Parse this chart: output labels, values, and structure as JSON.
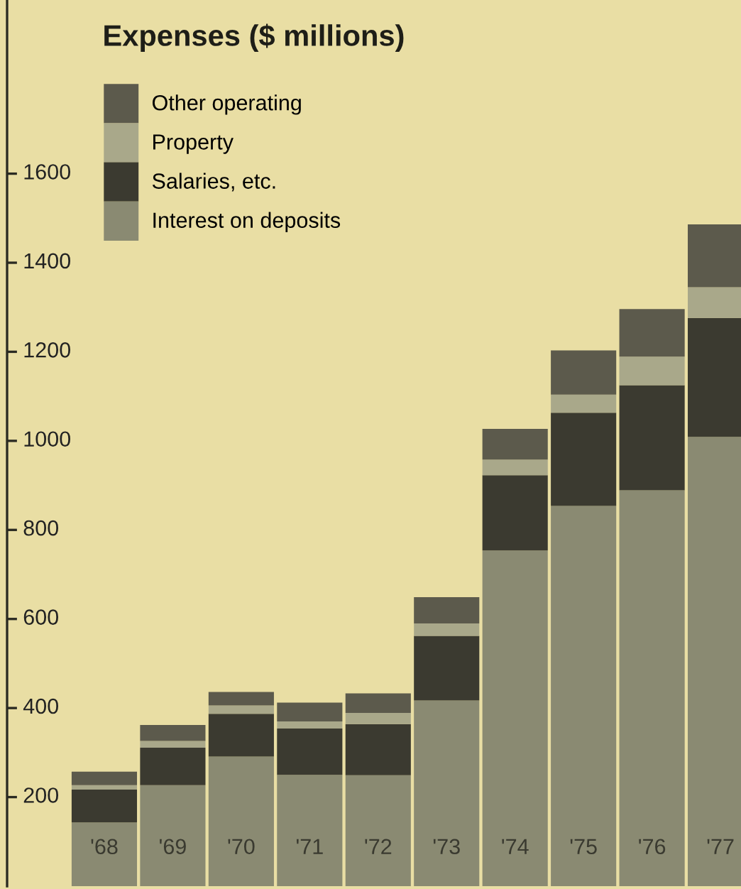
{
  "chart_data": {
    "type": "bar",
    "title": "Expenses ($ millions)",
    "stacked": true,
    "legend": "top left",
    "grid": false,
    "tick_labels": "y",
    "categories": [
      "'68",
      "'69",
      "'70",
      "'71",
      "'72",
      "'73",
      "'74",
      "'75",
      "'76",
      "'77"
    ],
    "series": [
      {
        "name": "Interest on deposits",
        "color": "#8a8a72",
        "values": [
          143,
          227,
          291,
          250,
          249,
          417,
          754,
          854,
          889,
          1009
        ]
      },
      {
        "name": "Salaries, etc.",
        "color": "#3b3a30",
        "values": [
          74,
          84,
          96,
          104,
          115,
          145,
          169,
          209,
          236,
          267
        ]
      },
      {
        "name": "Property",
        "color": "#a9a88a",
        "values": [
          10,
          15,
          19,
          16,
          25,
          28,
          35,
          41,
          64,
          69
        ]
      },
      {
        "name": "Other operating",
        "color": "#5c5a4c",
        "values": [
          30,
          36,
          30,
          42,
          44,
          59,
          69,
          99,
          107,
          141
        ]
      }
    ],
    "ylim": [
      0,
      1990
    ],
    "yticks": [
      200,
      400,
      600,
      800,
      1000,
      1200,
      1400,
      1600
    ]
  }
}
